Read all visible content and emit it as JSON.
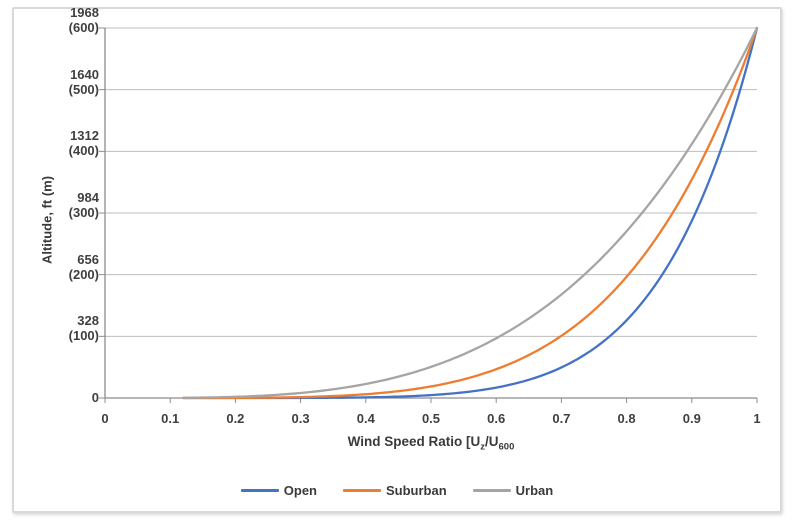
{
  "chart_data": {
    "type": "line",
    "xlabel": "Wind Speed Ratio [Uz/U600",
    "xlabel_parts": {
      "prefix": "Wind Speed Ratio [U",
      "sub1": "z",
      "mid": "/U",
      "sub2": "600"
    },
    "ylabel": "Altitude, ft (m)",
    "xlim": [
      0,
      1
    ],
    "ylim_ft": [
      0,
      1968
    ],
    "ylim_m": [
      0,
      600
    ],
    "grid": "horizontal-only",
    "legend_position": "bottom-center",
    "grid_color": "#bdbdbd",
    "axis_color": "#8c8c8c",
    "tick_text_color": "#3f3f3f",
    "frame_border_color": "#d9d9d9",
    "x_ticks": [
      {
        "label": "0",
        "value": 0.0
      },
      {
        "label": "0.1",
        "value": 0.1
      },
      {
        "label": "0.2",
        "value": 0.2
      },
      {
        "label": "0.3",
        "value": 0.3
      },
      {
        "label": "0.4",
        "value": 0.4
      },
      {
        "label": "0.5",
        "value": 0.5
      },
      {
        "label": "0.6",
        "value": 0.6
      },
      {
        "label": "0.7",
        "value": 0.7
      },
      {
        "label": "0.8",
        "value": 0.8
      },
      {
        "label": "0.9",
        "value": 0.9
      },
      {
        "label": "1",
        "value": 1.0
      }
    ],
    "y_ticks": [
      {
        "ft": "1968",
        "m": "(600)",
        "value_m": 600
      },
      {
        "ft": "1640",
        "m": "(500)",
        "value_m": 500
      },
      {
        "ft": "1312",
        "m": "(400)",
        "value_m": 400
      },
      {
        "ft": "984",
        "m": "(300)",
        "value_m": 300
      },
      {
        "ft": "656",
        "m": "(200)",
        "value_m": 200
      },
      {
        "ft": "328",
        "m": "(100)",
        "value_m": 100
      },
      {
        "ft": "0",
        "m": "",
        "value_m": 0
      }
    ],
    "series": [
      {
        "name": "Open",
        "color": "#4472C4",
        "model": "ratio = (z/600m)^alpha",
        "alpha": 0.143,
        "r_start": 0.12,
        "points_ratio_vs_altitude_m": [
          [
            0.2,
            0.0
          ],
          [
            0.25,
            0.04
          ],
          [
            0.3,
            0.1
          ],
          [
            0.35,
            0.4
          ],
          [
            0.4,
            1.0
          ],
          [
            0.45,
            2.2
          ],
          [
            0.5,
            4.7
          ],
          [
            0.55,
            9.1
          ],
          [
            0.6,
            16.8
          ],
          [
            0.65,
            29.4
          ],
          [
            0.7,
            49.4
          ],
          [
            0.75,
            80.1
          ],
          [
            0.8,
            125.8
          ],
          [
            0.85,
            192.3
          ],
          [
            0.9,
            287.0
          ],
          [
            0.95,
            419.0
          ],
          [
            1.0,
            600.0
          ]
        ]
      },
      {
        "name": "Suburban",
        "color": "#ED7D31",
        "model": "ratio = (z/600m)^alpha",
        "alpha": 0.2,
        "r_start": 0.12,
        "points_ratio_vs_altitude_m": [
          [
            0.2,
            0.2
          ],
          [
            0.25,
            0.6
          ],
          [
            0.3,
            1.5
          ],
          [
            0.35,
            3.2
          ],
          [
            0.4,
            6.1
          ],
          [
            0.45,
            11.1
          ],
          [
            0.5,
            18.8
          ],
          [
            0.55,
            30.2
          ],
          [
            0.6,
            46.7
          ],
          [
            0.65,
            69.6
          ],
          [
            0.7,
            100.8
          ],
          [
            0.75,
            142.4
          ],
          [
            0.8,
            196.6
          ],
          [
            0.85,
            266.2
          ],
          [
            0.9,
            354.3
          ],
          [
            0.95,
            464.5
          ],
          [
            1.0,
            600.0
          ]
        ]
      },
      {
        "name": "Urban",
        "color": "#A5A5A5",
        "model": "ratio = (z/600m)^alpha",
        "alpha": 0.28,
        "r_start": 0.12,
        "points_ratio_vs_altitude_m": [
          [
            0.2,
            1.9
          ],
          [
            0.25,
            4.3
          ],
          [
            0.3,
            8.1
          ],
          [
            0.35,
            14.2
          ],
          [
            0.4,
            22.7
          ],
          [
            0.45,
            34.6
          ],
          [
            0.5,
            50.4
          ],
          [
            0.55,
            70.9
          ],
          [
            0.6,
            96.8
          ],
          [
            0.65,
            128.8
          ],
          [
            0.7,
            167.9
          ],
          [
            0.75,
            214.8
          ],
          [
            0.8,
            270.4
          ],
          [
            0.85,
            335.8
          ],
          [
            0.9,
            411.8
          ],
          [
            0.95,
            499.6
          ],
          [
            1.0,
            600.0
          ]
        ]
      }
    ]
  }
}
